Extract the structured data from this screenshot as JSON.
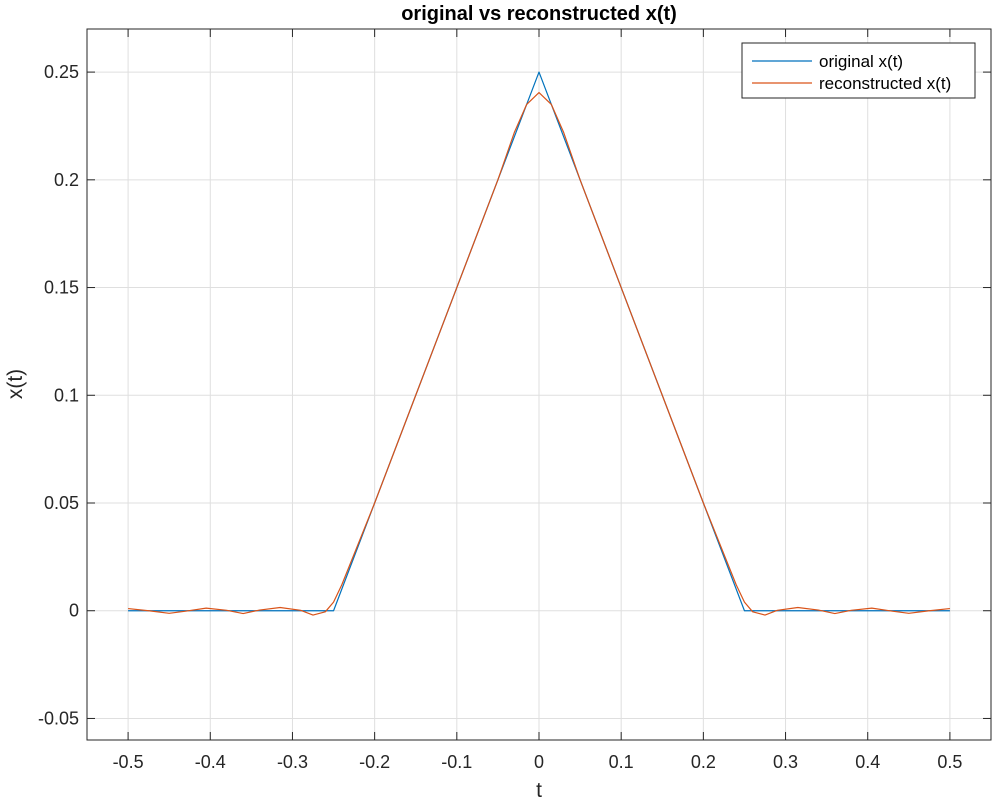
{
  "chart_data": {
    "type": "line",
    "title": "original vs reconstructed x(t)",
    "xlabel": "t",
    "ylabel": "x(t)",
    "xlim": [
      -0.55,
      0.55
    ],
    "ylim": [
      -0.06,
      0.27
    ],
    "grid": true,
    "legend_position": "top-right",
    "x_ticks": [
      {
        "value": -0.5,
        "label": "-0.5"
      },
      {
        "value": -0.4,
        "label": "-0.4"
      },
      {
        "value": -0.3,
        "label": "-0.3"
      },
      {
        "value": -0.2,
        "label": "-0.2"
      },
      {
        "value": -0.1,
        "label": "-0.1"
      },
      {
        "value": 0,
        "label": "0"
      },
      {
        "value": 0.1,
        "label": "0.1"
      },
      {
        "value": 0.2,
        "label": "0.2"
      },
      {
        "value": 0.3,
        "label": "0.3"
      },
      {
        "value": 0.4,
        "label": "0.4"
      },
      {
        "value": 0.5,
        "label": "0.5"
      }
    ],
    "y_ticks": [
      {
        "value": -0.05,
        "label": "-0.05"
      },
      {
        "value": 0,
        "label": "0"
      },
      {
        "value": 0.05,
        "label": "0.05"
      },
      {
        "value": 0.1,
        "label": "0.1"
      },
      {
        "value": 0.15,
        "label": "0.15"
      },
      {
        "value": 0.2,
        "label": "0.2"
      },
      {
        "value": 0.25,
        "label": "0.25"
      }
    ],
    "series": [
      {
        "name": "original x(t)",
        "color": "#0072BD",
        "x": [
          -0.5,
          -0.25,
          0,
          0.25,
          0.5
        ],
        "y": [
          0,
          0,
          0.25,
          0,
          0
        ]
      },
      {
        "name": "reconstructed x(t)",
        "color": "#D95319",
        "x": [
          -0.5,
          -0.475,
          -0.45,
          -0.43,
          -0.405,
          -0.38,
          -0.36,
          -0.34,
          -0.315,
          -0.29,
          -0.275,
          -0.26,
          -0.25,
          -0.24,
          -0.2,
          -0.15,
          -0.1,
          -0.05,
          -0.03,
          -0.015,
          0,
          0.015,
          0.03,
          0.05,
          0.1,
          0.15,
          0.2,
          0.24,
          0.25,
          0.26,
          0.275,
          0.29,
          0.315,
          0.34,
          0.36,
          0.38,
          0.405,
          0.43,
          0.45,
          0.475,
          0.5
        ],
        "y": [
          0.001,
          0.0,
          -0.0012,
          -0.0002,
          0.0012,
          0.0002,
          -0.0013,
          0.0003,
          0.0015,
          0.0002,
          -0.002,
          -0.0005,
          0.004,
          0.012,
          0.05,
          0.1,
          0.15,
          0.2,
          0.222,
          0.235,
          0.2405,
          0.235,
          0.222,
          0.2,
          0.15,
          0.1,
          0.05,
          0.012,
          0.004,
          -0.0005,
          -0.002,
          0.0002,
          0.0015,
          0.0003,
          -0.0013,
          0.0002,
          0.0012,
          -0.0002,
          -0.0012,
          0.0,
          0.001
        ]
      }
    ]
  }
}
